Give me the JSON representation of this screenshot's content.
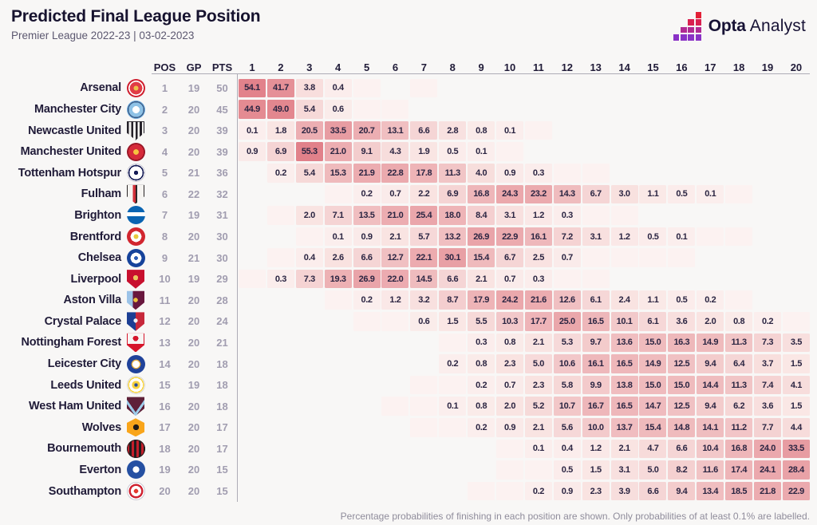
{
  "header": {
    "title": "Predicted Final League Position",
    "subtitle": "Premier League 2022-23 | 03-02-2023",
    "brand_bold": "Opta",
    "brand_light": "Analyst",
    "brand_icon_row_colors": [
      "#e32037",
      "#d92150",
      "#b02a93",
      "#8a32c6"
    ]
  },
  "table": {
    "stat_headers": [
      "POS",
      "GP",
      "PTS"
    ],
    "footnote": "Percentage probabilities of finishing in each position are shown. Only probabilities of at least 0.1% are labelled.",
    "faint_label": "<0.1"
  },
  "chart_data": {
    "type": "heatmap",
    "title": "Predicted Final League Position",
    "subtitle": "Premier League 2022-23 | 03-02-2023",
    "columns": [
      1,
      2,
      3,
      4,
      5,
      6,
      7,
      8,
      9,
      10,
      11,
      12,
      13,
      14,
      15,
      16,
      17,
      18,
      19,
      20
    ],
    "value_unit": "percent_probability",
    "note": "values marked \"<0.1\" are shaded but unlabelled in the original",
    "rows": [
      {
        "team": "Arsenal",
        "pos": 1,
        "gp": 19,
        "pts": 50,
        "values": [
          54.1,
          41.7,
          3.8,
          0.4,
          "<0.1",
          null,
          "<0.1",
          null,
          null,
          null,
          null,
          null,
          null,
          null,
          null,
          null,
          null,
          null,
          null,
          null
        ]
      },
      {
        "team": "Manchester City",
        "pos": 2,
        "gp": 20,
        "pts": 45,
        "values": [
          44.9,
          49.0,
          5.4,
          0.6,
          "<0.1",
          "<0.1",
          null,
          null,
          null,
          null,
          null,
          null,
          null,
          null,
          null,
          null,
          null,
          null,
          null,
          null
        ]
      },
      {
        "team": "Newcastle United",
        "pos": 3,
        "gp": 20,
        "pts": 39,
        "values": [
          0.1,
          1.8,
          20.5,
          33.5,
          20.7,
          13.1,
          6.6,
          2.8,
          0.8,
          0.1,
          "<0.1",
          null,
          null,
          null,
          null,
          null,
          null,
          null,
          null,
          null
        ]
      },
      {
        "team": "Manchester United",
        "pos": 4,
        "gp": 20,
        "pts": 39,
        "values": [
          0.9,
          6.9,
          55.3,
          21.0,
          9.1,
          4.3,
          1.9,
          0.5,
          0.1,
          "<0.1",
          null,
          null,
          null,
          null,
          null,
          null,
          null,
          null,
          null,
          null
        ]
      },
      {
        "team": "Tottenham Hotspur",
        "pos": 5,
        "gp": 21,
        "pts": 36,
        "values": [
          null,
          0.2,
          5.4,
          15.3,
          21.9,
          22.8,
          17.8,
          11.3,
          4.0,
          0.9,
          0.3,
          "<0.1",
          "<0.1",
          null,
          null,
          null,
          null,
          null,
          null,
          null
        ]
      },
      {
        "team": "Fulham",
        "pos": 6,
        "gp": 22,
        "pts": 32,
        "values": [
          null,
          null,
          null,
          "<0.1",
          0.2,
          0.7,
          2.2,
          6.9,
          16.8,
          24.3,
          23.2,
          14.3,
          6.7,
          3.0,
          1.1,
          0.5,
          0.1,
          "<0.1",
          null,
          null
        ]
      },
      {
        "team": "Brighton",
        "pos": 7,
        "gp": 19,
        "pts": 31,
        "values": [
          null,
          "<0.1",
          2.0,
          7.1,
          13.5,
          21.0,
          25.4,
          18.0,
          8.4,
          3.1,
          1.2,
          0.3,
          "<0.1",
          "<0.1",
          null,
          null,
          null,
          null,
          null,
          null
        ]
      },
      {
        "team": "Brentford",
        "pos": 8,
        "gp": 20,
        "pts": 30,
        "values": [
          null,
          null,
          "<0.1",
          0.1,
          0.9,
          2.1,
          5.7,
          13.2,
          26.9,
          22.9,
          16.1,
          7.2,
          3.1,
          1.2,
          0.5,
          0.1,
          "<0.1",
          "<0.1",
          null,
          null
        ]
      },
      {
        "team": "Chelsea",
        "pos": 9,
        "gp": 21,
        "pts": 30,
        "values": [
          null,
          "<0.1",
          0.4,
          2.6,
          6.6,
          12.7,
          22.1,
          30.1,
          15.4,
          6.7,
          2.5,
          0.7,
          "<0.1",
          "<0.1",
          "<0.1",
          "<0.1",
          null,
          null,
          null,
          null
        ]
      },
      {
        "team": "Liverpool",
        "pos": 10,
        "gp": 19,
        "pts": 29,
        "values": [
          "<0.1",
          0.3,
          7.3,
          19.3,
          26.9,
          22.0,
          14.5,
          6.6,
          2.1,
          0.7,
          0.3,
          "<0.1",
          "<0.1",
          null,
          null,
          null,
          null,
          null,
          null,
          null
        ]
      },
      {
        "team": "Aston Villa",
        "pos": 11,
        "gp": 20,
        "pts": 28,
        "values": [
          null,
          null,
          null,
          "<0.1",
          0.2,
          1.2,
          3.2,
          8.7,
          17.9,
          24.2,
          21.6,
          12.6,
          6.1,
          2.4,
          1.1,
          0.5,
          0.2,
          "<0.1",
          null,
          null
        ]
      },
      {
        "team": "Crystal Palace",
        "pos": 12,
        "gp": 20,
        "pts": 24,
        "values": [
          null,
          null,
          null,
          null,
          "<0.1",
          "<0.1",
          0.6,
          1.5,
          5.5,
          10.3,
          17.7,
          25.0,
          16.5,
          10.1,
          6.1,
          3.6,
          2.0,
          0.8,
          0.2,
          "<0.1"
        ]
      },
      {
        "team": "Nottingham Forest",
        "pos": 13,
        "gp": 20,
        "pts": 21,
        "values": [
          null,
          null,
          null,
          null,
          null,
          null,
          null,
          "<0.1",
          0.3,
          0.8,
          2.1,
          5.3,
          9.7,
          13.6,
          15.0,
          16.3,
          14.9,
          11.3,
          7.3,
          3.5
        ]
      },
      {
        "team": "Leicester City",
        "pos": 14,
        "gp": 20,
        "pts": 18,
        "values": [
          null,
          null,
          null,
          null,
          null,
          null,
          null,
          0.2,
          0.8,
          2.3,
          5.0,
          10.6,
          16.1,
          16.5,
          14.9,
          12.5,
          9.4,
          6.4,
          3.7,
          1.5
        ]
      },
      {
        "team": "Leeds United",
        "pos": 15,
        "gp": 19,
        "pts": 18,
        "values": [
          null,
          null,
          null,
          null,
          null,
          null,
          "<0.1",
          "<0.1",
          0.2,
          0.7,
          2.3,
          5.8,
          9.9,
          13.8,
          15.0,
          15.0,
          14.4,
          11.3,
          7.4,
          4.1
        ]
      },
      {
        "team": "West Ham United",
        "pos": 16,
        "gp": 20,
        "pts": 18,
        "values": [
          null,
          null,
          null,
          null,
          null,
          "<0.1",
          "<0.1",
          0.1,
          0.8,
          2.0,
          5.2,
          10.7,
          16.7,
          16.5,
          14.7,
          12.5,
          9.4,
          6.2,
          3.6,
          1.5
        ]
      },
      {
        "team": "Wolves",
        "pos": 17,
        "gp": 20,
        "pts": 17,
        "values": [
          null,
          null,
          null,
          null,
          null,
          null,
          "<0.1",
          "<0.1",
          0.2,
          0.9,
          2.1,
          5.6,
          10.0,
          13.7,
          15.4,
          14.8,
          14.1,
          11.2,
          7.7,
          4.4
        ]
      },
      {
        "team": "Bournemouth",
        "pos": 18,
        "gp": 20,
        "pts": 17,
        "values": [
          null,
          null,
          null,
          null,
          null,
          null,
          null,
          null,
          null,
          "<0.1",
          0.1,
          0.4,
          1.2,
          2.1,
          4.7,
          6.6,
          10.4,
          16.8,
          24.0,
          33.5
        ]
      },
      {
        "team": "Everton",
        "pos": 19,
        "gp": 20,
        "pts": 15,
        "values": [
          null,
          null,
          null,
          null,
          null,
          null,
          null,
          null,
          null,
          "<0.1",
          "<0.1",
          0.5,
          1.5,
          3.1,
          5.0,
          8.2,
          11.6,
          17.4,
          24.1,
          28.4
        ]
      },
      {
        "team": "Southampton",
        "pos": 20,
        "gp": 20,
        "pts": 15,
        "values": [
          null,
          null,
          null,
          null,
          null,
          null,
          null,
          null,
          "<0.1",
          "<0.1",
          0.2,
          0.9,
          2.3,
          3.9,
          6.6,
          9.4,
          13.4,
          18.5,
          21.8,
          22.9
        ]
      }
    ]
  },
  "badges": {
    "Arsenal": {
      "shape": "circle",
      "bg": "radial-gradient(circle, #eec04a 0 3px, #e13c45 3px 7.8px, #ffffff 7.8px 9.5px, #cf2030 9.5px)"
    },
    "Manchester City": {
      "shape": "circle",
      "bg": "radial-gradient(circle, #ffffff 0 4.5px, #8ec2e6 4.5px 9.2px, #3a5a85 9.2px 10.5px, #6cabdd 10.5px)"
    },
    "Newcastle United": {
      "shape": "shield",
      "bg": "repeating-linear-gradient(90deg, #26222a 0 2.7px, #f5f4f2 2.7px 5.4px)",
      "ring": "#26222a"
    },
    "Manchester United": {
      "shape": "circle",
      "bg": "radial-gradient(circle, #f6c23f 0 3.4px, #d62a3a 3.4px 9.6px, #9a1626 9.6px)"
    },
    "Tottenham Hotspur": {
      "shape": "circle",
      "bg": "radial-gradient(circle, #171d57 0 2.6px, #ffffff 2.6px 8.2px, #171d57 8.2px 9.8px, #ffffff 9.8px)",
      "ring": "#c9c8d2"
    },
    "Fulham": {
      "shape": "shield",
      "bg": "linear-gradient(90deg, #f5f3f0 0 7.5px, #d22f38 7.5px 11px, #2a2627 11px 13px, #f5f3f0 13px)",
      "ring": "#2a2627"
    },
    "Brighton": {
      "shape": "circle",
      "bg": "linear-gradient(180deg, #0a64b2 0 8px, #ffffff 8px 13px, #0a64b2 13px)"
    },
    "Brentford": {
      "shape": "circle",
      "bg": "radial-gradient(circle, #e8c93f 0 3px, #ffffff 3px 6.8px, #d2262f 6.8px)"
    },
    "Chelsea": {
      "shape": "circle",
      "bg": "radial-gradient(circle, #2c5cb5 0 2.4px, #ffffff 2.4px 6.8px, #16439b 6.8px)"
    },
    "Liverpool": {
      "shape": "shield",
      "bg": "radial-gradient(circle at 50% 42%, #ecc65f 0 3.2px, #c8102e 3.2px)"
    },
    "Aston Villa": {
      "shape": "shield",
      "bg": "radial-gradient(circle, #edc23f 0 2.8px, transparent 2.8px), linear-gradient(90deg, #9cc3e8 0 7.5px, #69173e 7.5px)"
    },
    "Crystal Palace": {
      "shape": "shield",
      "bg": "radial-gradient(circle at 50% 45%, #f2f2f4 0 2.6px, transparent 2.6px), linear-gradient(90deg, #1c3e94 0 11px, #c7283b 11px)"
    },
    "Nottingham Forest": {
      "shape": "shield",
      "bg": "radial-gradient(circle at 50% 30%, #d6152b 0 3.4px, transparent 3.4px), linear-gradient(180deg, #f7f5f3 0 14px, #d6152b 14px)",
      "ring": "#d6152b"
    },
    "Leicester City": {
      "shape": "circle",
      "bg": "radial-gradient(circle, #ffffff 0 4.5px, #e0a93e 4.5px 5.8px, #20429a 5.8px)"
    },
    "Leeds United": {
      "shape": "circle",
      "bg": "radial-gradient(circle, #2a4d9e 0 2.2px, #f7d23e 2.2px 5.2px, #ffffff 5.2px 8.6px, #f7d23e 8.6px 10px, #ffffff 10px)",
      "ring": "#d8d6ce"
    },
    "West Ham United": {
      "shape": "shield",
      "bg": "linear-gradient(55deg, transparent 0 8.5px, #9ecdeb 8.5px 11.5px, transparent 11.5px), linear-gradient(-55deg, transparent 0 8.5px, #9ecdeb 8.5px 11.5px, transparent 11.5px), linear-gradient(#5e2038, #5e2038)"
    },
    "Wolves": {
      "shape": "hex",
      "bg": "radial-gradient(circle, #221c18 0 3.6px, #f9a51a 3.6px)"
    },
    "Bournemouth": {
      "shape": "circle",
      "bg": "repeating-linear-gradient(90deg, #c41e2a 0 3px, #211c1e 3px 6px)",
      "ring": "#211c1e"
    },
    "Everton": {
      "shape": "circle",
      "bg": "radial-gradient(circle, #ffffff 0 4px, #2550a2 4px)"
    },
    "Southampton": {
      "shape": "circle",
      "bg": "radial-gradient(circle, #e43b30 0 2.8px, #ffffff 2.8px 6.5px, #d02433 6.5px 9px, #ffffff 9px)",
      "ring": "#c9c8d2"
    }
  },
  "heat_colors": {
    "faint": "#fcf2f1",
    "stops": [
      [
        0,
        "#fbefee"
      ],
      [
        2,
        "#f9e4e2"
      ],
      [
        7,
        "#f5d4d4"
      ],
      [
        13,
        "#f0bfc1"
      ],
      [
        21,
        "#ecadb1"
      ],
      [
        28,
        "#e9a2a7"
      ],
      [
        35,
        "#e69aa0"
      ],
      [
        45,
        "#e48b92"
      ],
      [
        56,
        "#e18089"
      ]
    ]
  }
}
